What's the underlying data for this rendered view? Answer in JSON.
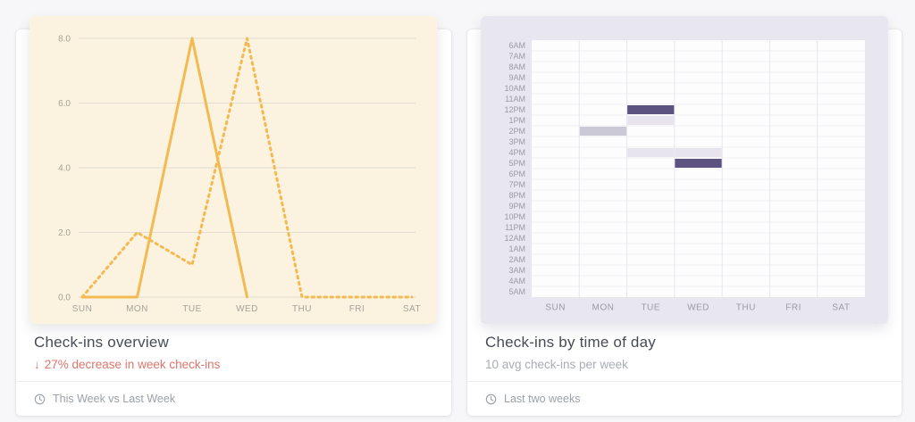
{
  "cards": {
    "overview": {
      "title": "Check-ins overview",
      "delta_arrow": "↓",
      "delta_text": "27% decrease in week check-ins",
      "delta_color": "#e0756c",
      "footer": "This Week vs Last Week"
    },
    "time_of_day": {
      "title": "Check-ins by time of day",
      "subtitle": "10 avg check-ins per week",
      "footer": "Last two weeks"
    }
  },
  "chart_data": [
    {
      "type": "line",
      "title": "Check-ins overview",
      "panel_bg": "#fbf3e0",
      "line_color": "#f3ba52",
      "grid_color": "#e2ddd1",
      "label_color": "#a6a198",
      "categories": [
        "SUN",
        "MON",
        "TUE",
        "WED",
        "THU",
        "FRI",
        "SAT"
      ],
      "series": [
        {
          "name": "This Week",
          "style": "solid",
          "values": [
            0,
            0,
            8,
            0,
            null,
            null,
            null
          ]
        },
        {
          "name": "Last Week",
          "style": "dotted",
          "values": [
            0,
            2,
            1,
            8,
            0,
            0,
            0
          ]
        }
      ],
      "ylim": [
        0,
        8
      ],
      "yticks": [
        0,
        2,
        4,
        6,
        8
      ],
      "grid": true,
      "legend": "none"
    },
    {
      "type": "heatmap",
      "title": "Check-ins by time of day",
      "panel_bg": "#e8e6ee",
      "cell_bg": "#fdfdfe",
      "row_line_color": "#efedf3",
      "col_line_color": "#e8e6ee",
      "label_color": "#9d9aa5",
      "x_categories": [
        "SUN",
        "MON",
        "TUE",
        "WED",
        "THU",
        "FRI",
        "SAT"
      ],
      "y_categories": [
        "6AM",
        "7AM",
        "8AM",
        "9AM",
        "10AM",
        "11AM",
        "12PM",
        "1PM",
        "2PM",
        "3PM",
        "4PM",
        "5PM",
        "6PM",
        "7PM",
        "8PM",
        "9PM",
        "10PM",
        "11PM",
        "12AM",
        "1AM",
        "2AM",
        "3AM",
        "4AM",
        "5AM"
      ],
      "levels": {
        "high": "#5d5380",
        "medium": "#ccc9d7",
        "low": "#e7e4ee"
      },
      "cells": [
        {
          "day": "MON",
          "time": "2PM",
          "level": "medium"
        },
        {
          "day": "TUE",
          "time": "12PM",
          "level": "high"
        },
        {
          "day": "TUE",
          "time": "1PM",
          "level": "low"
        },
        {
          "day": "TUE",
          "time": "4PM",
          "level": "low"
        },
        {
          "day": "WED",
          "time": "4PM",
          "level": "low"
        },
        {
          "day": "WED",
          "time": "5PM",
          "level": "high"
        }
      ]
    }
  ]
}
